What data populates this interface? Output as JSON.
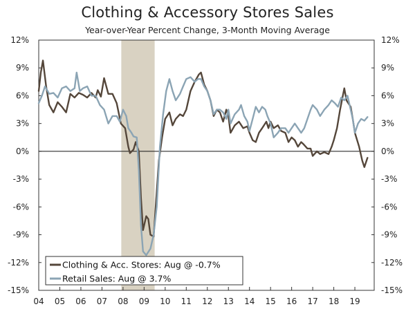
{
  "chart_data": {
    "type": "line",
    "title": "Clothing & Accessory Stores Sales",
    "subtitle": "Year-over-Year Percent Change, 3-Month Moving Average",
    "xlabel": "",
    "ylabel": "",
    "ylim": [
      -15,
      12
    ],
    "xlim": [
      2004.0,
      2019.917
    ],
    "y_ticks": [
      12,
      9,
      6,
      3,
      0,
      -3,
      -6,
      -9,
      -12,
      -15
    ],
    "y_tick_labels": [
      "12%",
      "9%",
      "6%",
      "3%",
      "0%",
      "-3%",
      "-6%",
      "-9%",
      "-12%",
      "-15%"
    ],
    "x_ticks": [
      2004,
      2005,
      2006,
      2007,
      2008,
      2009,
      2010,
      2011,
      2012,
      2013,
      2014,
      2015,
      2016,
      2017,
      2018,
      2019
    ],
    "x_tick_labels": [
      "04",
      "05",
      "06",
      "07",
      "08",
      "09",
      "10",
      "11",
      "12",
      "13",
      "14",
      "15",
      "16",
      "17",
      "18",
      "19"
    ],
    "recession_shading": {
      "start": 2007.917,
      "end": 2009.5,
      "color": "#d9d2c2"
    },
    "legend_position": "bottom-left",
    "series": [
      {
        "name": "Clothing & Acc. Stores: Aug @ -0.7%",
        "color": "#54463a",
        "points": [
          [
            2004.0,
            6.5
          ],
          [
            2004.1,
            8.5
          ],
          [
            2004.2,
            9.8
          ],
          [
            2004.35,
            7.0
          ],
          [
            2004.5,
            5.0
          ],
          [
            2004.7,
            4.2
          ],
          [
            2004.9,
            5.3
          ],
          [
            2005.1,
            4.8
          ],
          [
            2005.3,
            4.2
          ],
          [
            2005.5,
            6.2
          ],
          [
            2005.7,
            5.8
          ],
          [
            2005.9,
            6.3
          ],
          [
            2006.1,
            6.1
          ],
          [
            2006.3,
            5.8
          ],
          [
            2006.5,
            6.3
          ],
          [
            2006.7,
            5.8
          ],
          [
            2006.8,
            6.6
          ],
          [
            2006.95,
            5.9
          ],
          [
            2007.1,
            7.9
          ],
          [
            2007.3,
            6.2
          ],
          [
            2007.5,
            6.2
          ],
          [
            2007.7,
            5.2
          ],
          [
            2007.9,
            3.0
          ],
          [
            2008.1,
            2.5
          ],
          [
            2008.25,
            0.5
          ],
          [
            2008.33,
            -0.2
          ],
          [
            2008.5,
            0.2
          ],
          [
            2008.6,
            1.0
          ],
          [
            2008.75,
            0.0
          ],
          [
            2008.85,
            -5.0
          ],
          [
            2008.95,
            -8.5
          ],
          [
            2009.1,
            -7.0
          ],
          [
            2009.2,
            -7.3
          ],
          [
            2009.3,
            -9.0
          ],
          [
            2009.45,
            -9.2
          ],
          [
            2009.55,
            -6.0
          ],
          [
            2009.7,
            -1.0
          ],
          [
            2009.85,
            1.5
          ],
          [
            2010.0,
            3.5
          ],
          [
            2010.2,
            4.2
          ],
          [
            2010.35,
            2.8
          ],
          [
            2010.5,
            3.5
          ],
          [
            2010.7,
            4.0
          ],
          [
            2010.85,
            3.8
          ],
          [
            2011.0,
            4.5
          ],
          [
            2011.2,
            6.5
          ],
          [
            2011.4,
            7.5
          ],
          [
            2011.6,
            8.3
          ],
          [
            2011.7,
            8.5
          ],
          [
            2011.85,
            7.2
          ],
          [
            2012.0,
            6.5
          ],
          [
            2012.15,
            5.5
          ],
          [
            2012.3,
            3.8
          ],
          [
            2012.45,
            4.5
          ],
          [
            2012.6,
            4.2
          ],
          [
            2012.75,
            3.2
          ],
          [
            2012.9,
            4.5
          ],
          [
            2013.0,
            3.8
          ],
          [
            2013.1,
            2.0
          ],
          [
            2013.3,
            2.8
          ],
          [
            2013.5,
            3.2
          ],
          [
            2013.7,
            2.5
          ],
          [
            2013.9,
            2.7
          ],
          [
            2014.0,
            2.0
          ],
          [
            2014.15,
            1.2
          ],
          [
            2014.3,
            1.0
          ],
          [
            2014.45,
            2.0
          ],
          [
            2014.6,
            2.5
          ],
          [
            2014.8,
            3.2
          ],
          [
            2014.9,
            2.5
          ],
          [
            2015.0,
            3.2
          ],
          [
            2015.15,
            2.5
          ],
          [
            2015.35,
            2.8
          ],
          [
            2015.5,
            2.2
          ],
          [
            2015.7,
            2.0
          ],
          [
            2015.85,
            1.0
          ],
          [
            2016.0,
            1.5
          ],
          [
            2016.15,
            1.2
          ],
          [
            2016.3,
            0.5
          ],
          [
            2016.45,
            1.0
          ],
          [
            2016.55,
            0.8
          ],
          [
            2016.75,
            0.3
          ],
          [
            2016.9,
            0.3
          ],
          [
            2017.0,
            -0.5
          ],
          [
            2017.2,
            0.0
          ],
          [
            2017.35,
            -0.3
          ],
          [
            2017.55,
            -0.1
          ],
          [
            2017.75,
            -0.3
          ],
          [
            2017.9,
            0.5
          ],
          [
            2018.0,
            1.2
          ],
          [
            2018.15,
            2.5
          ],
          [
            2018.3,
            4.5
          ],
          [
            2018.5,
            6.8
          ],
          [
            2018.6,
            5.5
          ],
          [
            2018.8,
            4.8
          ],
          [
            2018.9,
            3.5
          ],
          [
            2019.0,
            2.0
          ],
          [
            2019.2,
            0.5
          ],
          [
            2019.35,
            -1.0
          ],
          [
            2019.45,
            -1.7
          ],
          [
            2019.6,
            -0.7
          ]
        ]
      },
      {
        "name": "Retail Sales: Aug @ 3.7%",
        "color": "#8ba4b4",
        "points": [
          [
            2004.0,
            5.2
          ],
          [
            2004.15,
            6.0
          ],
          [
            2004.3,
            7.0
          ],
          [
            2004.5,
            6.2
          ],
          [
            2004.7,
            6.3
          ],
          [
            2004.9,
            5.8
          ],
          [
            2005.1,
            6.8
          ],
          [
            2005.3,
            7.0
          ],
          [
            2005.5,
            6.5
          ],
          [
            2005.7,
            6.8
          ],
          [
            2005.8,
            8.5
          ],
          [
            2005.95,
            6.5
          ],
          [
            2006.1,
            6.8
          ],
          [
            2006.3,
            7.0
          ],
          [
            2006.5,
            6.0
          ],
          [
            2006.7,
            6.0
          ],
          [
            2006.9,
            5.0
          ],
          [
            2007.1,
            4.5
          ],
          [
            2007.3,
            3.0
          ],
          [
            2007.5,
            3.8
          ],
          [
            2007.7,
            3.8
          ],
          [
            2007.85,
            3.2
          ],
          [
            2008.0,
            4.5
          ],
          [
            2008.15,
            3.8
          ],
          [
            2008.25,
            2.5
          ],
          [
            2008.4,
            2.0
          ],
          [
            2008.5,
            1.6
          ],
          [
            2008.65,
            1.5
          ],
          [
            2008.75,
            -2.0
          ],
          [
            2008.85,
            -8.0
          ],
          [
            2008.95,
            -10.8
          ],
          [
            2009.1,
            -11.2
          ],
          [
            2009.3,
            -10.5
          ],
          [
            2009.45,
            -9.0
          ],
          [
            2009.6,
            -6.0
          ],
          [
            2009.75,
            0.5
          ],
          [
            2009.9,
            4.0
          ],
          [
            2010.05,
            6.5
          ],
          [
            2010.2,
            7.8
          ],
          [
            2010.35,
            6.5
          ],
          [
            2010.5,
            5.5
          ],
          [
            2010.7,
            6.2
          ],
          [
            2010.85,
            7.0
          ],
          [
            2011.0,
            7.8
          ],
          [
            2011.2,
            8.0
          ],
          [
            2011.4,
            7.5
          ],
          [
            2011.55,
            7.8
          ],
          [
            2011.7,
            7.8
          ],
          [
            2011.85,
            7.0
          ],
          [
            2012.0,
            6.5
          ],
          [
            2012.15,
            5.5
          ],
          [
            2012.3,
            4.0
          ],
          [
            2012.45,
            4.5
          ],
          [
            2012.6,
            4.5
          ],
          [
            2012.75,
            4.2
          ],
          [
            2012.9,
            3.5
          ],
          [
            2013.0,
            4.5
          ],
          [
            2013.1,
            3.0
          ],
          [
            2013.3,
            4.0
          ],
          [
            2013.5,
            4.5
          ],
          [
            2013.6,
            5.0
          ],
          [
            2013.75,
            3.8
          ],
          [
            2013.9,
            3.2
          ],
          [
            2014.0,
            2.2
          ],
          [
            2014.15,
            3.5
          ],
          [
            2014.3,
            4.8
          ],
          [
            2014.45,
            4.2
          ],
          [
            2014.6,
            4.8
          ],
          [
            2014.75,
            4.5
          ],
          [
            2014.85,
            3.8
          ],
          [
            2015.0,
            3.0
          ],
          [
            2015.15,
            1.5
          ],
          [
            2015.35,
            2.0
          ],
          [
            2015.5,
            2.5
          ],
          [
            2015.7,
            2.5
          ],
          [
            2015.85,
            2.0
          ],
          [
            2016.0,
            2.5
          ],
          [
            2016.15,
            3.0
          ],
          [
            2016.3,
            2.5
          ],
          [
            2016.45,
            2.0
          ],
          [
            2016.6,
            2.5
          ],
          [
            2016.75,
            3.5
          ],
          [
            2016.9,
            4.5
          ],
          [
            2017.0,
            5.0
          ],
          [
            2017.2,
            4.5
          ],
          [
            2017.35,
            3.8
          ],
          [
            2017.55,
            4.5
          ],
          [
            2017.75,
            5.0
          ],
          [
            2017.9,
            5.5
          ],
          [
            2018.05,
            5.2
          ],
          [
            2018.2,
            4.8
          ],
          [
            2018.35,
            5.8
          ],
          [
            2018.5,
            5.5
          ],
          [
            2018.65,
            6.0
          ],
          [
            2018.8,
            4.5
          ],
          [
            2018.9,
            3.5
          ],
          [
            2019.0,
            2.0
          ],
          [
            2019.15,
            3.0
          ],
          [
            2019.3,
            3.5
          ],
          [
            2019.45,
            3.3
          ],
          [
            2019.6,
            3.7
          ]
        ]
      }
    ]
  }
}
